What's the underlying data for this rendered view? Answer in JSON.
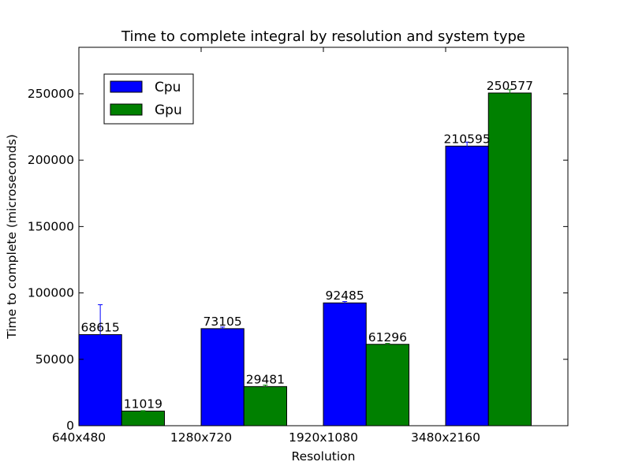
{
  "chart_data": {
    "type": "bar",
    "title": "Time to complete integral by resolution and system type",
    "xlabel": "Resolution",
    "ylabel": "Time to complete (microseconds)",
    "categories": [
      "640x480",
      "1280x720",
      "1920x1080",
      "3480x2160"
    ],
    "series": [
      {
        "name": "Cpu",
        "color": "#0000ff",
        "values": [
          68615,
          73105,
          92485,
          210595
        ],
        "errors": [
          22500,
          1200,
          1000,
          3000
        ]
      },
      {
        "name": "Gpu",
        "color": "#008000",
        "values": [
          11019,
          29481,
          61296,
          250577
        ],
        "errors": [
          300,
          1100,
          700,
          2500
        ]
      }
    ],
    "ylim": [
      0,
      285000
    ],
    "yticks": [
      0,
      50000,
      100000,
      150000,
      200000,
      250000
    ],
    "grid": false,
    "legend": "top-left"
  }
}
